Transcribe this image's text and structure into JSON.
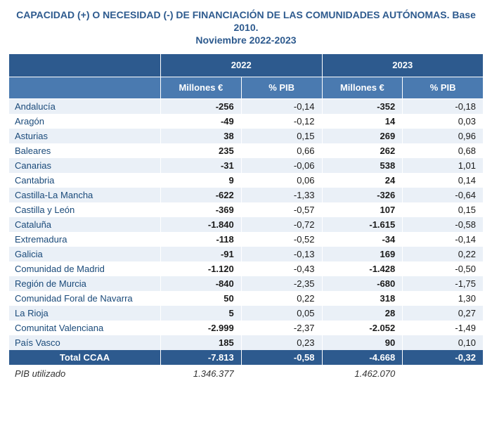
{
  "title_line1": "CAPACIDAD (+) O NECESIDAD (-) DE FINANCIACIÓN DE LAS COMUNIDADES AUTÓNOMAS. Base 2010.",
  "title_line2": "Noviembre 2022-2023",
  "colors": {
    "header_dark": "#2d5a8e",
    "header_light": "#4a7ab0",
    "row_stripe": "#eaf0f7",
    "title_text": "#2d5a8e",
    "label_text": "#1a4a7a"
  },
  "typography": {
    "base_fontsize": 13,
    "title_fontsize": 14
  },
  "header": {
    "year1": "2022",
    "year2": "2023",
    "sub_millones": "Millones €",
    "sub_pib": "% PIB"
  },
  "rows": [
    {
      "label": "Andalucía",
      "m22": "-256",
      "p22": "-0,14",
      "m23": "-352",
      "p23": "-0,18"
    },
    {
      "label": "Aragón",
      "m22": "-49",
      "p22": "-0,12",
      "m23": "14",
      "p23": "0,03"
    },
    {
      "label": "Asturias",
      "m22": "38",
      "p22": "0,15",
      "m23": "269",
      "p23": "0,96"
    },
    {
      "label": "Baleares",
      "m22": "235",
      "p22": "0,66",
      "m23": "262",
      "p23": "0,68"
    },
    {
      "label": "Canarias",
      "m22": "-31",
      "p22": "-0,06",
      "m23": "538",
      "p23": "1,01"
    },
    {
      "label": "Cantabria",
      "m22": "9",
      "p22": "0,06",
      "m23": "24",
      "p23": "0,14"
    },
    {
      "label": "Castilla-La Mancha",
      "m22": "-622",
      "p22": "-1,33",
      "m23": "-326",
      "p23": "-0,64"
    },
    {
      "label": "Castilla y León",
      "m22": "-369",
      "p22": "-0,57",
      "m23": "107",
      "p23": "0,15"
    },
    {
      "label": "Cataluña",
      "m22": "-1.840",
      "p22": "-0,72",
      "m23": "-1.615",
      "p23": "-0,58"
    },
    {
      "label": "Extremadura",
      "m22": "-118",
      "p22": "-0,52",
      "m23": "-34",
      "p23": "-0,14"
    },
    {
      "label": "Galicia",
      "m22": "-91",
      "p22": "-0,13",
      "m23": "169",
      "p23": "0,22"
    },
    {
      "label": "Comunidad de Madrid",
      "m22": "-1.120",
      "p22": "-0,43",
      "m23": "-1.428",
      "p23": "-0,50"
    },
    {
      "label": "Región de Murcia",
      "m22": "-840",
      "p22": "-2,35",
      "m23": "-680",
      "p23": "-1,75"
    },
    {
      "label": "Comunidad Foral de Navarra",
      "m22": "50",
      "p22": "0,22",
      "m23": "318",
      "p23": "1,30"
    },
    {
      "label": "La Rioja",
      "m22": "5",
      "p22": "0,05",
      "m23": "28",
      "p23": "0,27"
    },
    {
      "label": "Comunitat Valenciana",
      "m22": "-2.999",
      "p22": "-2,37",
      "m23": "-2.052",
      "p23": "-1,49"
    },
    {
      "label": "País Vasco",
      "m22": "185",
      "p22": "0,23",
      "m23": "90",
      "p23": "0,10"
    }
  ],
  "total": {
    "label": "Total CCAA",
    "m22": "-7.813",
    "p22": "-0,58",
    "m23": "-4.668",
    "p23": "-0,32"
  },
  "pib": {
    "label": "PIB utilizado",
    "m22": "1.346.377",
    "p22": "",
    "m23": "1.462.070",
    "p23": ""
  },
  "columns": [
    {
      "name": "label",
      "width_pct": 32,
      "align": "left"
    },
    {
      "name": "m22",
      "width_pct": 17,
      "align": "right",
      "bold": true
    },
    {
      "name": "p22",
      "width_pct": 17,
      "align": "right",
      "bold": false
    },
    {
      "name": "m23",
      "width_pct": 17,
      "align": "right",
      "bold": true
    },
    {
      "name": "p23",
      "width_pct": 17,
      "align": "right",
      "bold": false
    }
  ]
}
